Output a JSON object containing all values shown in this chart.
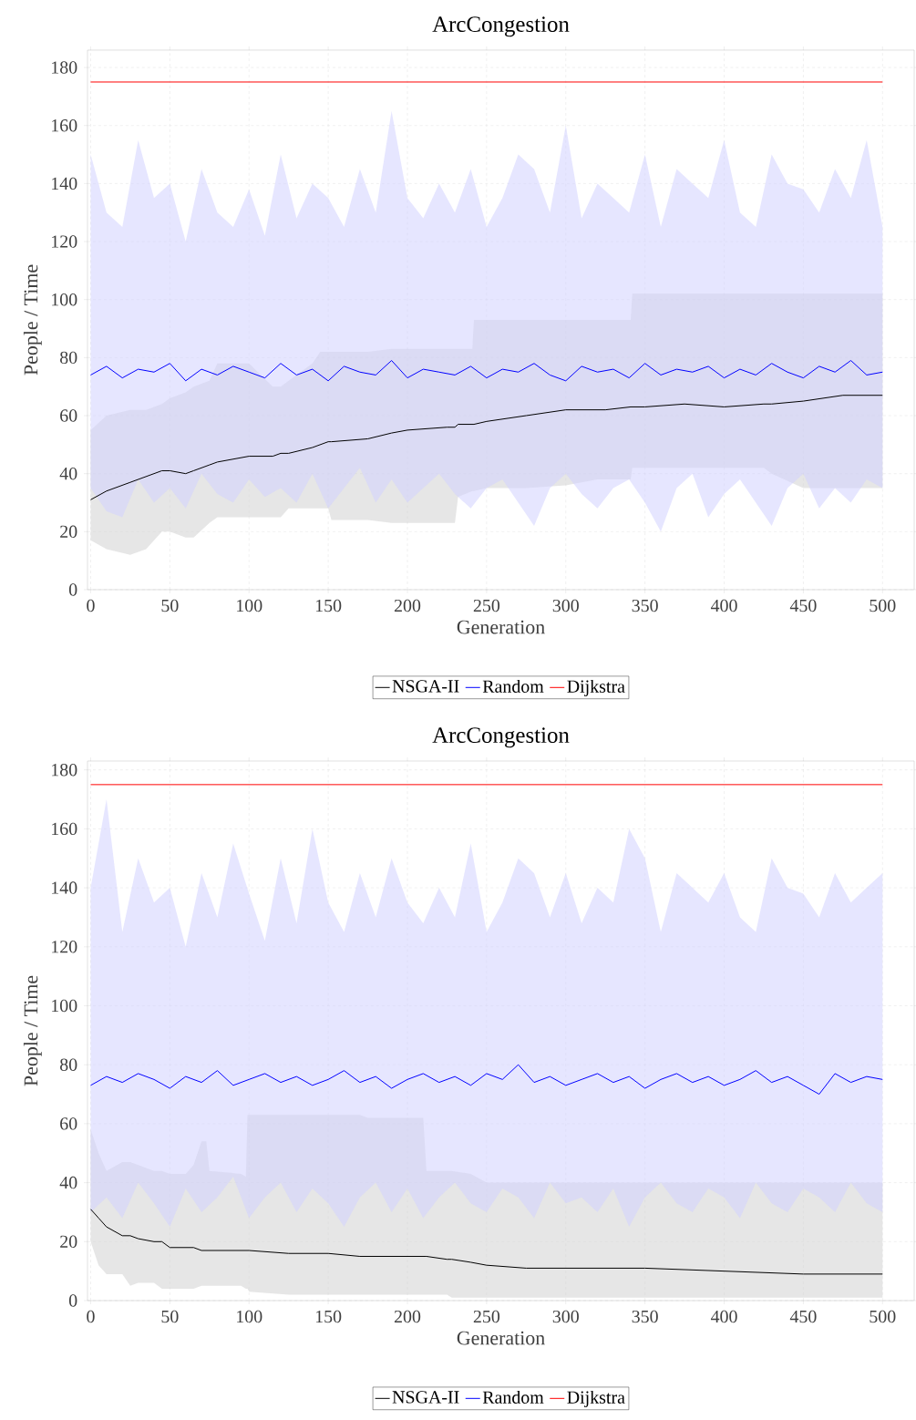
{
  "chart_data": [
    {
      "type": "line",
      "title": "ArcCongestion",
      "xlabel": "Generation",
      "ylabel": "People / Time",
      "xlim": [
        -2,
        520
      ],
      "ylim": [
        0,
        186
      ],
      "xticks": [
        0,
        50,
        100,
        150,
        200,
        250,
        300,
        350,
        400,
        450,
        500
      ],
      "yticks": [
        0,
        20,
        40,
        60,
        80,
        100,
        120,
        140,
        160,
        180
      ],
      "grid": true,
      "legend": "bottom",
      "series": [
        {
          "name": "NSGA-II",
          "color": "#000000",
          "x": [
            0,
            10,
            25,
            35,
            45,
            50,
            60,
            65,
            75,
            80,
            100,
            115,
            120,
            125,
            140,
            145,
            150,
            152,
            175,
            190,
            200,
            225,
            230,
            232,
            241,
            242,
            250,
            275,
            300,
            320,
            325,
            341,
            342,
            350,
            375,
            400,
            425,
            430,
            450,
            475,
            500
          ],
          "values": [
            31,
            34,
            37,
            39,
            41,
            41,
            40,
            41,
            43,
            44,
            46,
            46,
            47,
            47,
            49,
            50,
            51,
            51,
            52,
            54,
            55,
            56,
            56,
            57,
            57,
            57,
            58,
            60,
            62,
            62,
            62,
            63,
            63,
            63,
            64,
            63,
            64,
            64,
            65,
            67,
            67
          ],
          "lower": [
            17,
            14,
            12,
            14,
            20,
            20,
            18,
            18,
            23,
            25,
            25,
            25,
            25,
            28,
            28,
            28,
            28,
            24,
            24,
            23,
            23,
            23,
            23,
            32,
            34,
            34,
            35,
            35,
            36,
            38,
            38,
            38,
            42,
            42,
            42,
            42,
            42,
            40,
            35,
            35,
            35
          ],
          "upper": [
            55,
            60,
            62,
            62,
            64,
            66,
            68,
            70,
            72,
            78,
            78,
            70,
            70,
            72,
            78,
            82,
            82,
            82,
            82,
            83,
            83,
            83,
            83,
            83,
            83,
            93,
            93,
            93,
            93,
            93,
            93,
            93,
            102,
            102,
            102,
            102,
            102,
            102,
            102,
            102,
            102
          ]
        },
        {
          "name": "Random",
          "color": "#0000ff",
          "x": [
            0,
            10,
            20,
            30,
            40,
            50,
            60,
            70,
            80,
            90,
            100,
            110,
            120,
            130,
            140,
            150,
            160,
            170,
            180,
            190,
            200,
            210,
            220,
            230,
            240,
            250,
            260,
            270,
            280,
            290,
            300,
            310,
            320,
            330,
            340,
            350,
            360,
            370,
            380,
            390,
            400,
            410,
            420,
            430,
            440,
            450,
            460,
            470,
            480,
            490,
            500
          ],
          "values": [
            74,
            77,
            73,
            76,
            75,
            78,
            72,
            76,
            74,
            77,
            75,
            73,
            78,
            74,
            76,
            72,
            77,
            75,
            74,
            79,
            73,
            76,
            75,
            74,
            77,
            73,
            76,
            75,
            78,
            74,
            72,
            77,
            75,
            76,
            73,
            78,
            74,
            76,
            75,
            77,
            73,
            76,
            74,
            78,
            75,
            73,
            77,
            75,
            79,
            74,
            75
          ],
          "lower": [
            35,
            27,
            25,
            38,
            30,
            35,
            28,
            40,
            33,
            30,
            38,
            32,
            35,
            30,
            40,
            28,
            35,
            42,
            30,
            38,
            30,
            35,
            40,
            33,
            28,
            35,
            38,
            30,
            22,
            35,
            40,
            33,
            28,
            35,
            38,
            30,
            20,
            35,
            40,
            25,
            33,
            38,
            30,
            22,
            35,
            40,
            28,
            35,
            30,
            38,
            35
          ],
          "upper": [
            150,
            130,
            125,
            155,
            135,
            140,
            120,
            145,
            130,
            125,
            138,
            122,
            150,
            128,
            140,
            135,
            125,
            145,
            130,
            165,
            135,
            128,
            140,
            130,
            145,
            125,
            135,
            150,
            145,
            130,
            160,
            128,
            140,
            135,
            130,
            150,
            125,
            145,
            140,
            135,
            155,
            130,
            125,
            150,
            140,
            138,
            130,
            145,
            135,
            155,
            125
          ]
        },
        {
          "name": "Dijkstra",
          "color": "#ff0000",
          "x": [
            0,
            500
          ],
          "values": [
            175,
            175
          ]
        }
      ]
    },
    {
      "type": "line",
      "title": "ArcCongestion",
      "xlabel": "Generation",
      "ylabel": "People / Time",
      "xlim": [
        -2,
        520
      ],
      "ylim": [
        0,
        183
      ],
      "xticks": [
        0,
        50,
        100,
        150,
        200,
        250,
        300,
        350,
        400,
        450,
        500
      ],
      "yticks": [
        0,
        20,
        40,
        60,
        80,
        100,
        120,
        140,
        160,
        180
      ],
      "grid": true,
      "legend": "bottom",
      "series": [
        {
          "name": "NSGA-II",
          "color": "#000000",
          "x": [
            0,
            5,
            10,
            20,
            25,
            30,
            40,
            45,
            50,
            60,
            65,
            70,
            73,
            75,
            95,
            98,
            99,
            100,
            125,
            150,
            170,
            175,
            200,
            210,
            212,
            225,
            228,
            240,
            250,
            275,
            300,
            350,
            400,
            450,
            500
          ],
          "values": [
            31,
            28,
            25,
            22,
            22,
            21,
            20,
            20,
            18,
            18,
            18,
            17,
            17,
            17,
            17,
            17,
            17,
            17,
            16,
            16,
            15,
            15,
            15,
            15,
            15,
            14,
            14,
            13,
            12,
            11,
            11,
            11,
            10,
            9,
            9
          ],
          "lower": [
            20,
            12,
            9,
            9,
            5,
            6,
            6,
            4,
            4,
            4,
            4,
            5,
            5,
            5,
            5,
            4,
            4,
            3,
            2,
            2,
            2,
            2,
            2,
            2,
            2,
            2,
            1,
            1,
            1,
            1,
            1,
            1,
            1,
            1,
            1
          ],
          "upper": [
            58,
            50,
            44,
            47,
            47,
            46,
            44,
            44,
            43,
            43,
            46,
            54,
            54,
            44,
            43,
            42,
            63,
            63,
            63,
            63,
            63,
            62,
            62,
            62,
            44,
            44,
            44,
            43,
            40,
            40,
            40,
            40,
            40,
            40,
            40
          ]
        },
        {
          "name": "Random",
          "color": "#0000ff",
          "x": [
            0,
            10,
            20,
            30,
            40,
            50,
            60,
            70,
            80,
            90,
            100,
            110,
            120,
            130,
            140,
            150,
            160,
            170,
            180,
            190,
            200,
            210,
            220,
            230,
            240,
            250,
            260,
            270,
            280,
            290,
            300,
            310,
            320,
            330,
            340,
            350,
            360,
            370,
            380,
            390,
            400,
            410,
            420,
            430,
            440,
            450,
            460,
            470,
            480,
            490,
            500
          ],
          "values": [
            73,
            76,
            74,
            77,
            75,
            72,
            76,
            74,
            78,
            73,
            75,
            77,
            74,
            76,
            73,
            75,
            78,
            74,
            76,
            72,
            75,
            77,
            74,
            76,
            73,
            77,
            75,
            80,
            74,
            76,
            73,
            75,
            77,
            74,
            76,
            72,
            75,
            77,
            74,
            76,
            73,
            75,
            78,
            74,
            76,
            73,
            70,
            77,
            74,
            76,
            75
          ],
          "lower": [
            30,
            35,
            28,
            40,
            33,
            25,
            38,
            30,
            35,
            42,
            28,
            35,
            40,
            30,
            38,
            33,
            25,
            35,
            40,
            30,
            38,
            28,
            35,
            40,
            33,
            30,
            38,
            35,
            28,
            40,
            33,
            35,
            30,
            38,
            25,
            35,
            40,
            33,
            30,
            38,
            35,
            28,
            40,
            33,
            30,
            38,
            35,
            30,
            40,
            33,
            30
          ],
          "upper": [
            140,
            170,
            125,
            150,
            135,
            140,
            120,
            145,
            130,
            155,
            138,
            122,
            150,
            128,
            160,
            135,
            125,
            145,
            130,
            150,
            135,
            128,
            140,
            130,
            155,
            125,
            135,
            150,
            145,
            130,
            145,
            128,
            140,
            135,
            160,
            150,
            125,
            145,
            140,
            135,
            145,
            130,
            125,
            150,
            140,
            138,
            130,
            145,
            135,
            140,
            145
          ]
        },
        {
          "name": "Dijkstra",
          "color": "#ff0000",
          "x": [
            0,
            500
          ],
          "values": [
            175,
            175
          ]
        }
      ]
    }
  ]
}
